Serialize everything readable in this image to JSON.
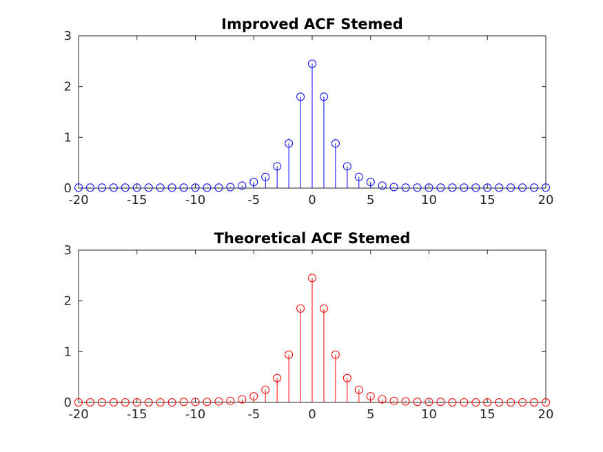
{
  "chart_data": [
    {
      "type": "stem",
      "title": "Improved ACF Stemed",
      "xlabel": "",
      "ylabel": "",
      "xlim": [
        -20,
        20
      ],
      "ylim": [
        0,
        3
      ],
      "xticks": [
        "-20",
        "-15",
        "-10",
        "-5",
        "0",
        "5",
        "10",
        "15",
        "20"
      ],
      "yticks": [
        "0",
        "1",
        "2",
        "3"
      ],
      "grid": false,
      "color": "#0000ff",
      "x": [
        -20,
        -19,
        -18,
        -17,
        -16,
        -15,
        -14,
        -13,
        -12,
        -11,
        -10,
        -9,
        -8,
        -7,
        -6,
        -5,
        -4,
        -3,
        -2,
        -1,
        0,
        1,
        2,
        3,
        4,
        5,
        6,
        7,
        8,
        9,
        10,
        11,
        12,
        13,
        14,
        15,
        16,
        17,
        18,
        19,
        20
      ],
      "y": [
        0.01,
        0.01,
        0.01,
        0.01,
        0.01,
        0.01,
        0.01,
        0.01,
        0.01,
        0.01,
        0.01,
        0.01,
        0.01,
        0.02,
        0.05,
        0.12,
        0.22,
        0.43,
        0.88,
        1.8,
        2.45,
        1.8,
        0.88,
        0.43,
        0.22,
        0.12,
        0.05,
        0.02,
        0.01,
        0.01,
        0.01,
        0.01,
        0.01,
        0.01,
        0.01,
        0.01,
        0.01,
        0.01,
        0.01,
        0.01,
        0.01
      ]
    },
    {
      "type": "stem",
      "title": "Theoretical ACF Stemed",
      "xlabel": "",
      "ylabel": "",
      "xlim": [
        -20,
        20
      ],
      "ylim": [
        0,
        3
      ],
      "xticks": [
        "-20",
        "-15",
        "-10",
        "-5",
        "0",
        "5",
        "10",
        "15",
        "20"
      ],
      "yticks": [
        "0",
        "1",
        "2",
        "3"
      ],
      "grid": false,
      "color": "#ff0000",
      "x": [
        -20,
        -19,
        -18,
        -17,
        -16,
        -15,
        -14,
        -13,
        -12,
        -11,
        -10,
        -9,
        -8,
        -7,
        -6,
        -5,
        -4,
        -3,
        -2,
        -1,
        0,
        1,
        2,
        3,
        4,
        5,
        6,
        7,
        8,
        9,
        10,
        11,
        12,
        13,
        14,
        15,
        16,
        17,
        18,
        19,
        20
      ],
      "y": [
        0.0,
        0.0,
        0.0,
        0.0,
        0.0,
        0.0,
        0.0,
        0.0,
        0.0,
        0.01,
        0.01,
        0.01,
        0.02,
        0.03,
        0.06,
        0.12,
        0.25,
        0.48,
        0.94,
        1.85,
        2.45,
        1.85,
        0.94,
        0.48,
        0.25,
        0.12,
        0.06,
        0.03,
        0.02,
        0.01,
        0.01,
        0.01,
        0.0,
        0.0,
        0.0,
        0.0,
        0.0,
        0.0,
        0.0,
        0.0,
        0.0
      ]
    }
  ]
}
